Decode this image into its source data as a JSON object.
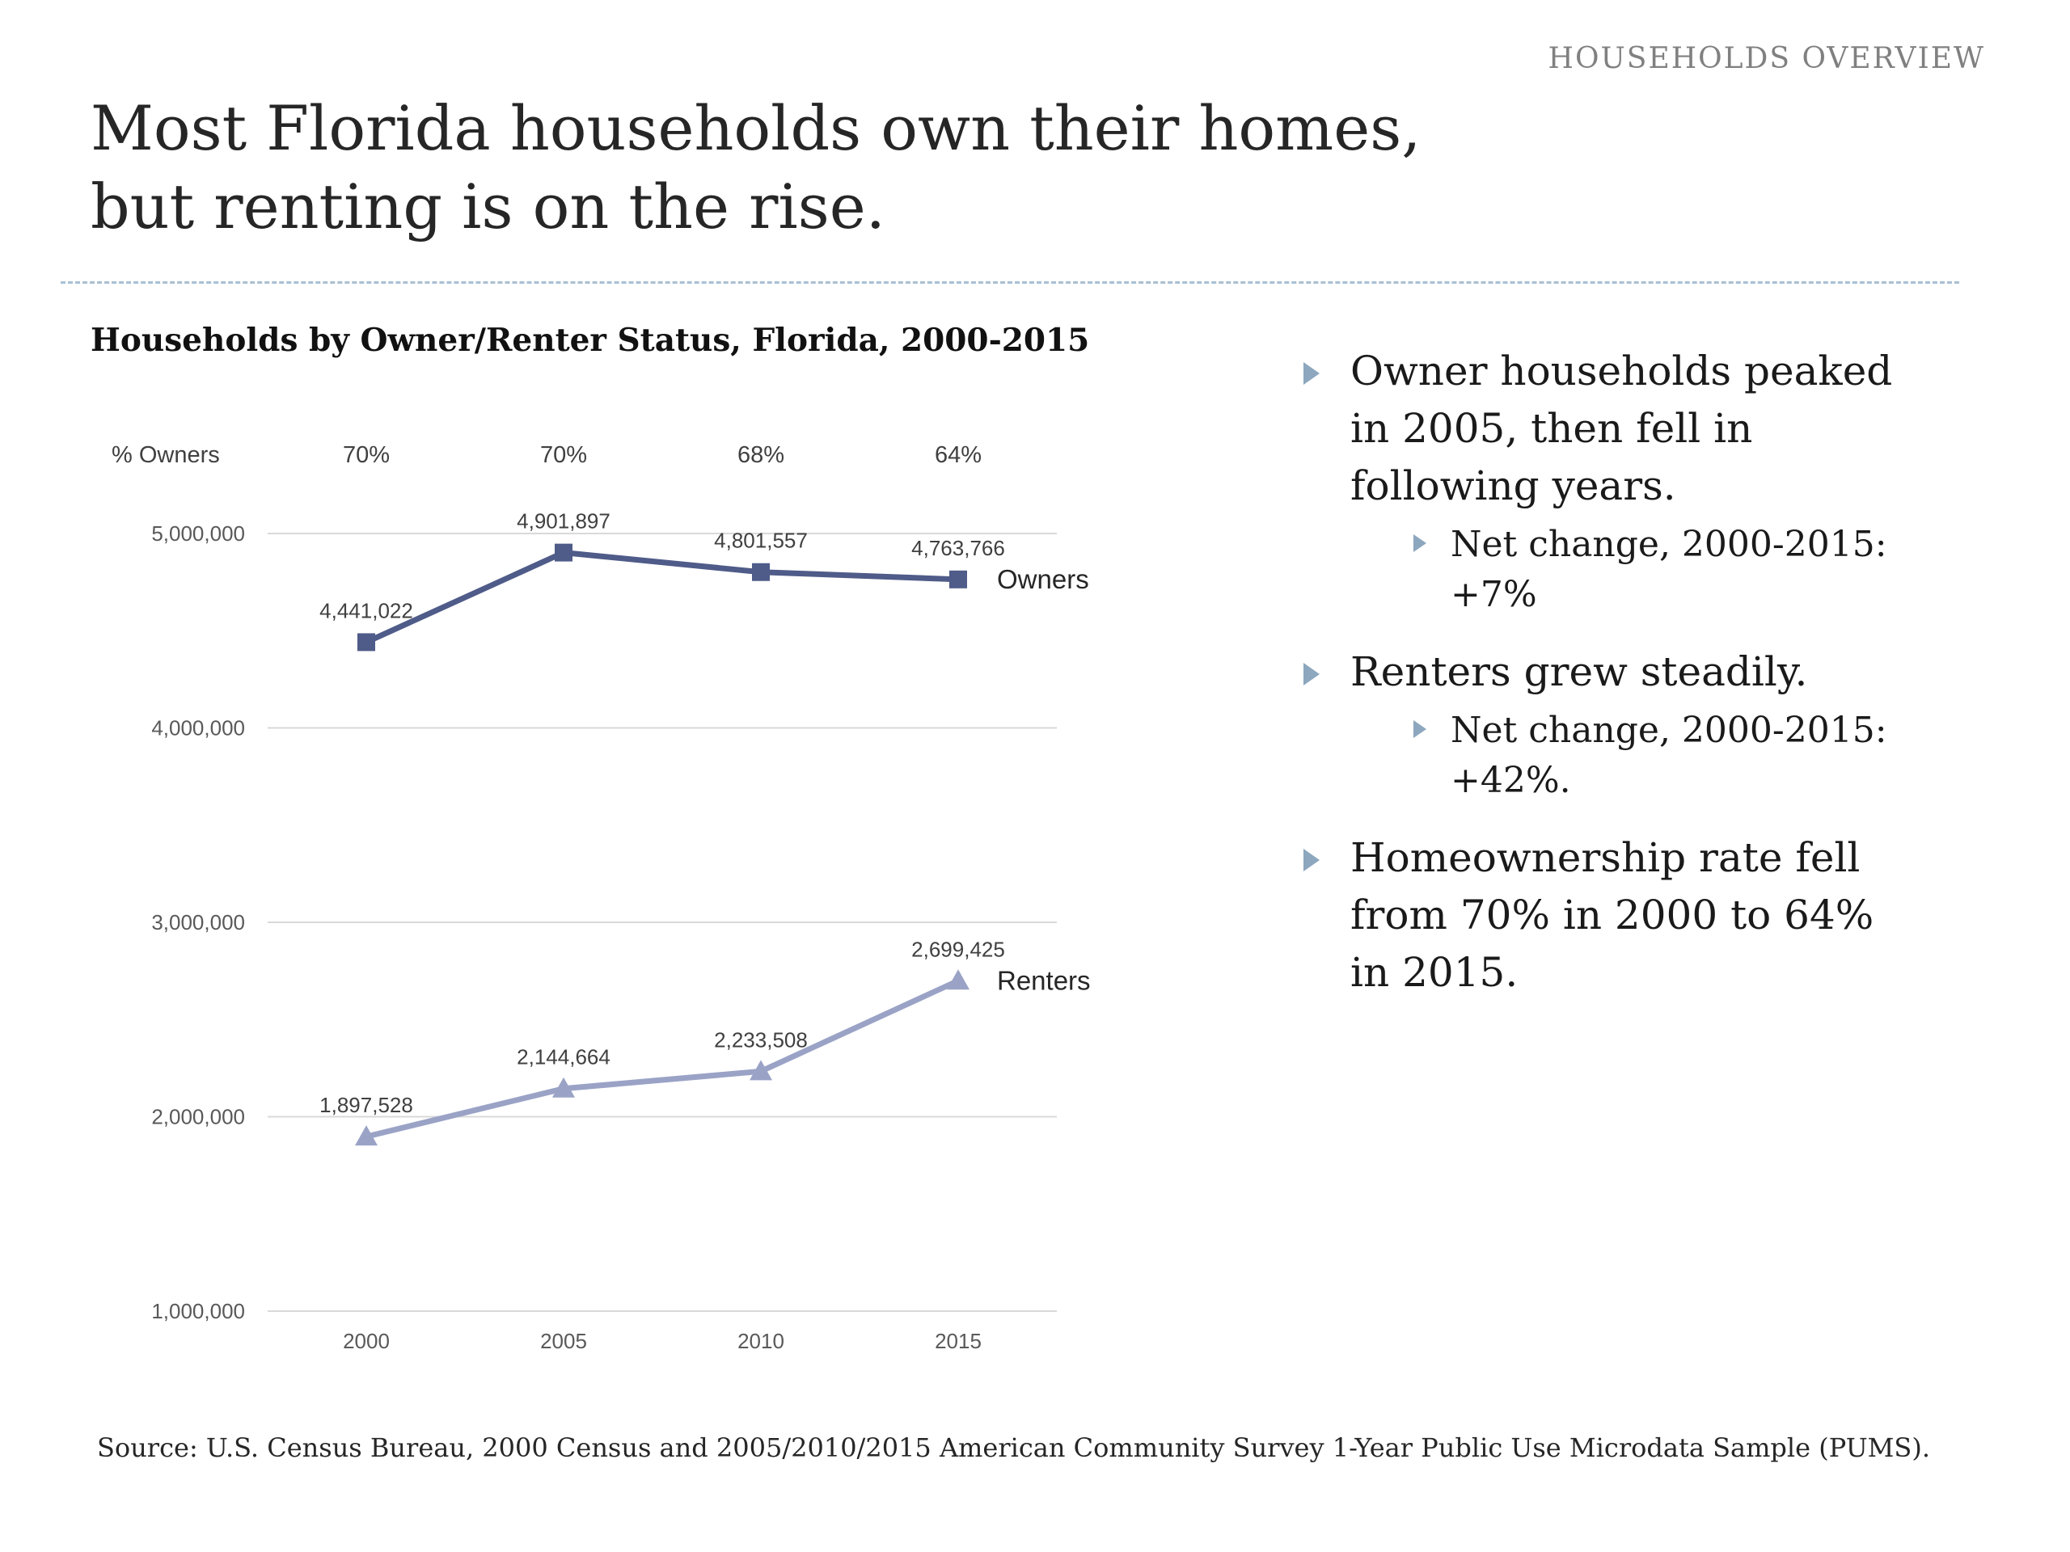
{
  "header": {
    "kicker": "HOUSEHOLDS OVERVIEW"
  },
  "title": "Most Florida households own their homes,\nbut renting is on the rise.",
  "chart_data": {
    "type": "line",
    "title": "Households by Owner/Renter Status, Florida, 2000-2015",
    "x_labels": [
      "2000",
      "2005",
      "2010",
      "2015"
    ],
    "pct_owners_label": "% Owners",
    "pct_owners": [
      "70%",
      "70%",
      "68%",
      "64%"
    ],
    "y_ticks": [
      5000000,
      4000000,
      3000000,
      2000000,
      1000000
    ],
    "y_tick_labels": [
      "5,000,000",
      "4,000,000",
      "3,000,000",
      "2,000,000",
      "1,000,000"
    ],
    "ylim": [
      1000000,
      5000000
    ],
    "grid": true,
    "legend": "inline-right",
    "series": [
      {
        "name": "Owners",
        "values": [
          4441022,
          4901897,
          4801557,
          4763766
        ],
        "labels": [
          "4,441,022",
          "4,901,897",
          "4,801,557",
          "4,763,766"
        ],
        "color": "#4f5b88",
        "marker": "square"
      },
      {
        "name": "Renters",
        "values": [
          1897528,
          2144664,
          2233508,
          2699425
        ],
        "labels": [
          "1,897,528",
          "2,144,664",
          "2,233,508",
          "2,699,425"
        ],
        "color": "#9aa3c6",
        "marker": "triangle"
      }
    ]
  },
  "bullets": [
    {
      "text": "Owner households peaked in 2005, then fell in following years.",
      "subs": [
        "Net change, 2000-2015: +7%"
      ]
    },
    {
      "text": "Renters grew steadily.",
      "subs": [
        "Net change, 2000-2015: +42%."
      ]
    },
    {
      "text": "Homeownership rate fell from 70% in 2000 to 64% in 2015.",
      "subs": []
    }
  ],
  "source": "Source: U.S. Census Bureau, 2000 Census and 2005/2010/2015 American Community Survey 1-Year Public Use Microdata Sample (PUMS).",
  "colors": {
    "owners": "#4f5b88",
    "renters": "#9aa3c6",
    "grid": "#d9d9d9",
    "accent_chevron": "#8ca7be",
    "divider": "#a9c0d3",
    "kicker_text": "#808080",
    "axis_text": "#595959",
    "body_text": "#1a1a1a"
  }
}
